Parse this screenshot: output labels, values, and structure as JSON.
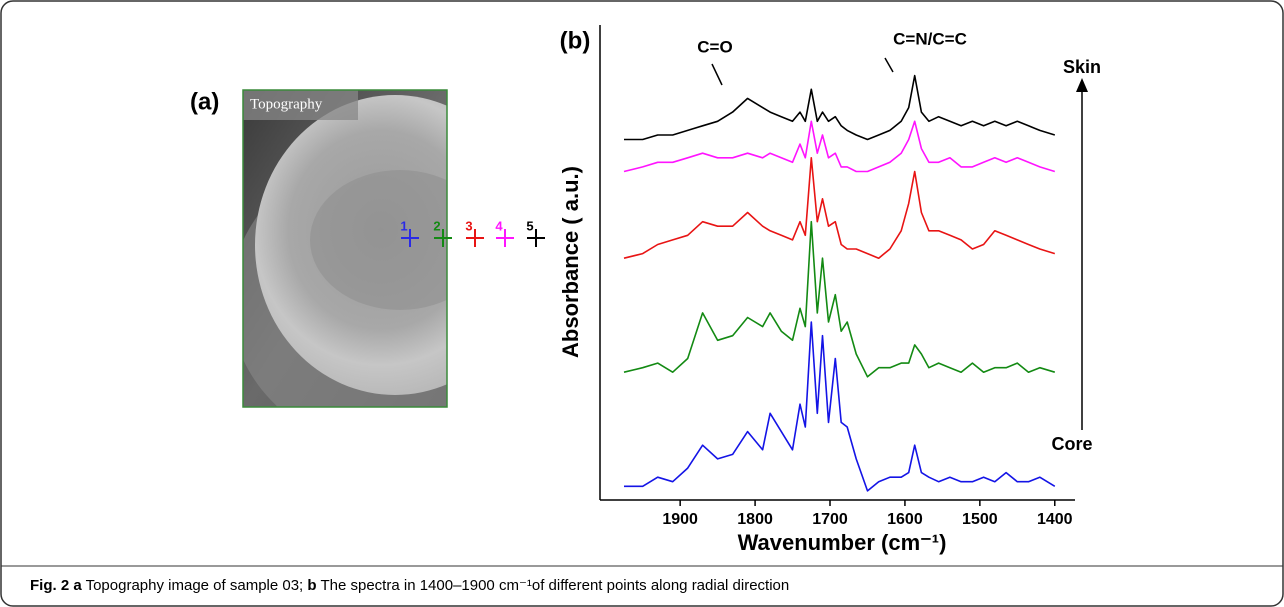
{
  "chart_data": {
    "type": "line",
    "panel_label": "(b)",
    "x_label": "Wavenumber (cm⁻¹)",
    "y_label": "Absorbance ( a.u.)",
    "annotations": [
      "C=O",
      "C=N/C=C"
    ],
    "arrow_labels": [
      "Skin",
      "Core"
    ],
    "xlim": [
      2007,
      1373
    ],
    "ylim": [
      -0.3,
      10
    ],
    "xticks": [
      1900,
      1800,
      1700,
      1600,
      1500,
      1400
    ],
    "x": [
      1975,
      1950,
      1930,
      1910,
      1890,
      1870,
      1850,
      1830,
      1810,
      1790,
      1780,
      1765,
      1750,
      1740,
      1733,
      1725,
      1717,
      1710,
      1702,
      1693,
      1685,
      1677,
      1665,
      1650,
      1635,
      1620,
      1605,
      1595,
      1587,
      1578,
      1568,
      1555,
      1540,
      1525,
      1510,
      1495,
      1480,
      1465,
      1450,
      1435,
      1420,
      1400
    ],
    "series": [
      {
        "color": "#1414e6",
        "values": [
          0.0,
          0.0,
          0.2,
          0.1,
          0.4,
          0.9,
          0.6,
          0.7,
          1.2,
          0.8,
          1.6,
          1.2,
          0.8,
          1.8,
          1.3,
          3.6,
          1.6,
          3.3,
          1.4,
          2.8,
          1.4,
          1.3,
          0.6,
          -0.1,
          0.1,
          0.2,
          0.2,
          0.3,
          0.9,
          0.3,
          0.2,
          0.1,
          0.2,
          0.1,
          0.1,
          0.2,
          0.1,
          0.3,
          0.1,
          0.1,
          0.2,
          0.0
        ]
      },
      {
        "color": "#138a13",
        "values": [
          2.5,
          2.6,
          2.7,
          2.5,
          2.8,
          3.8,
          3.2,
          3.3,
          3.7,
          3.5,
          3.8,
          3.4,
          3.2,
          3.9,
          3.5,
          5.8,
          3.8,
          5.0,
          3.6,
          4.2,
          3.4,
          3.6,
          2.9,
          2.4,
          2.6,
          2.6,
          2.7,
          2.7,
          3.1,
          2.9,
          2.6,
          2.7,
          2.6,
          2.5,
          2.7,
          2.5,
          2.6,
          2.6,
          2.7,
          2.5,
          2.6,
          2.5
        ]
      },
      {
        "color": "#e81414",
        "values": [
          5.0,
          5.1,
          5.3,
          5.4,
          5.5,
          5.8,
          5.7,
          5.7,
          6.0,
          5.7,
          5.6,
          5.5,
          5.4,
          5.8,
          5.5,
          7.2,
          5.8,
          6.3,
          5.7,
          5.8,
          5.3,
          5.2,
          5.2,
          5.1,
          5.0,
          5.2,
          5.6,
          6.2,
          6.9,
          6.0,
          5.6,
          5.6,
          5.5,
          5.4,
          5.2,
          5.3,
          5.6,
          5.5,
          5.4,
          5.3,
          5.2,
          5.1
        ]
      },
      {
        "color": "#ff14ff",
        "values": [
          6.9,
          7.0,
          7.1,
          7.1,
          7.2,
          7.3,
          7.2,
          7.2,
          7.3,
          7.2,
          7.3,
          7.2,
          7.1,
          7.5,
          7.2,
          8.0,
          7.3,
          7.7,
          7.2,
          7.3,
          7.0,
          7.0,
          6.9,
          6.9,
          7.0,
          7.1,
          7.3,
          7.6,
          8.0,
          7.4,
          7.1,
          7.1,
          7.2,
          7.0,
          7.0,
          7.1,
          7.2,
          7.1,
          7.2,
          7.1,
          7.0,
          6.9
        ]
      },
      {
        "color": "#000000",
        "values": [
          7.6,
          7.6,
          7.7,
          7.7,
          7.8,
          7.9,
          8.0,
          8.2,
          8.5,
          8.3,
          8.2,
          8.1,
          8.0,
          8.2,
          8.0,
          8.7,
          8.0,
          8.2,
          8.0,
          8.1,
          7.9,
          7.8,
          7.7,
          7.6,
          7.7,
          7.8,
          8.0,
          8.3,
          9.0,
          8.2,
          8.0,
          8.1,
          8.0,
          7.9,
          8.0,
          7.9,
          8.0,
          7.9,
          8.0,
          7.9,
          7.8,
          7.7
        ]
      }
    ]
  },
  "panel_a": {
    "label": "(a)",
    "image_label": "Topography",
    "markers": [
      {
        "label": "1",
        "color": "#2a2ae6"
      },
      {
        "label": "2",
        "color": "#138a13"
      },
      {
        "label": "3",
        "color": "#e81414"
      },
      {
        "label": "4",
        "color": "#ff14ff"
      },
      {
        "label": "5",
        "color": "#000000"
      }
    ]
  },
  "caption": {
    "figure": "Fig. 2",
    "part_a": "a",
    "text_a": "Topography image of sample 03;",
    "part_b": "b",
    "text_b": "The spectra in 1400–1900 cm⁻¹of different points along radial direction"
  }
}
